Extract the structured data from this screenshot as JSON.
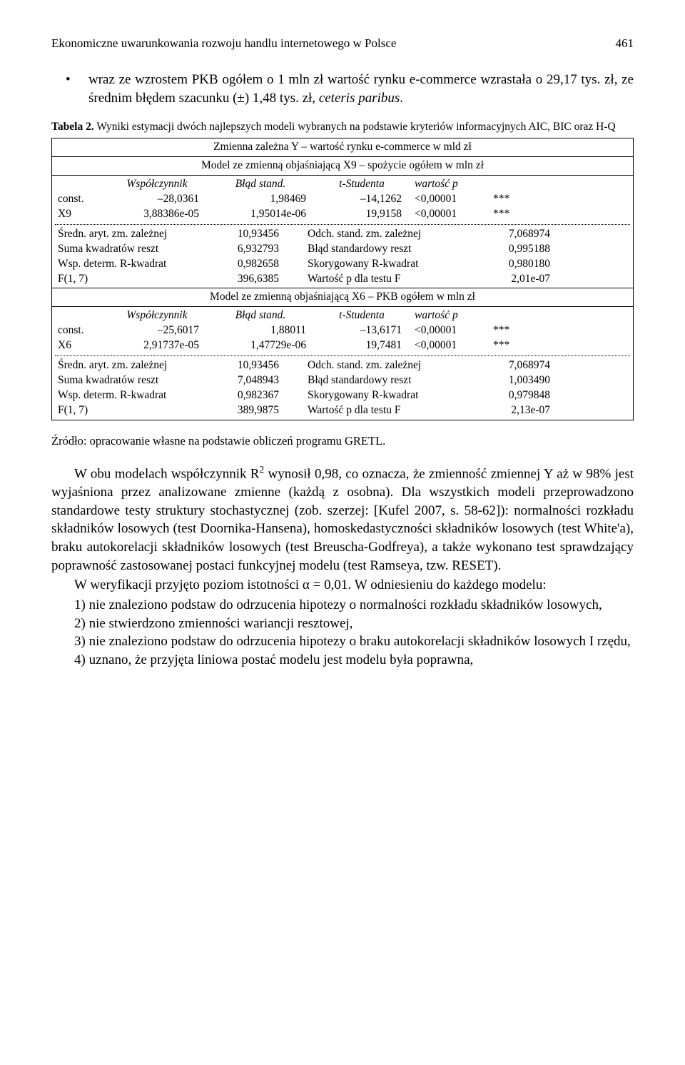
{
  "header": {
    "running_title": "Ekonomiczne uwarunkowania rozwoju handlu internetowego w Polsce",
    "page_number": "461"
  },
  "bullet": {
    "dot": "•",
    "text_a": "wraz ze wzrostem PKB ogółem o 1 mln zł wartość rynku e-commerce wzrastała o 29,17 tys. zł, ze średnim błędem szacunku (",
    "pm": "±",
    "text_b": ") 1,48 tys. zł, ",
    "text_c": "ceteris paribus",
    "text_d": "."
  },
  "table": {
    "caption_label": "Tabela 2.",
    "caption_text": " Wyniki estymacji dwóch najlepszych modeli wybranych na podstawie kryteriów informacyjnych AIC, BIC oraz H-Q",
    "y_header": "Zmienna zależna Y – wartość rynku e-commerce w mld zł",
    "model1_header": "Model ze zmienną objaśniającą X9 – spożycie ogółem w mln zł",
    "col_labels": {
      "coef": "Współczynnik",
      "se": "Błąd stand.",
      "t": "t-Studenta",
      "p": "wartość p"
    },
    "m1": {
      "rows": [
        {
          "name": "const.",
          "coef": "–28,0361",
          "se": "1,98469",
          "t": "–14,1262",
          "p": "<0,00001",
          "stars": "***"
        },
        {
          "name": "X9",
          "coef": "3,88386e-05",
          "se": "1,95014e-06",
          "t": "19,9158",
          "p": "<0,00001",
          "stars": "***"
        }
      ],
      "stats": [
        {
          "l": "Średn. aryt. zm. zależnej",
          "lv": "10,93456",
          "r": "Odch. stand. zm. zależnej",
          "rv": "7,068974"
        },
        {
          "l": "Suma kwadratów reszt",
          "lv": "6,932793",
          "r": "Błąd standardowy reszt",
          "rv": "0,995188"
        },
        {
          "l": "Wsp. determ. R-kwadrat",
          "lv": "0,982658",
          "r": "Skorygowany R-kwadrat",
          "rv": "0,980180"
        },
        {
          "l": "F(1, 7)",
          "lv": "396,6385",
          "r": "Wartość p dla testu F",
          "rv": "2,01e-07"
        }
      ]
    },
    "model2_header": "Model ze zmienną objaśniającą X6 – PKB ogółem w mln zł",
    "m2": {
      "rows": [
        {
          "name": "const.",
          "coef": "–25,6017",
          "se": "1,88011",
          "t": "–13,6171",
          "p": "<0,00001",
          "stars": "***"
        },
        {
          "name": "X6",
          "coef": "2,91737e-05",
          "se": "1,47729e-06",
          "t": "19,7481",
          "p": "<0,00001",
          "stars": "***"
        }
      ],
      "stats": [
        {
          "l": "Średn. aryt. zm. zależnej",
          "lv": "10,93456",
          "r": "Odch. stand. zm. zależnej",
          "rv": "7,068974"
        },
        {
          "l": "Suma kwadratów reszt",
          "lv": "7,048943",
          "r": "Błąd standardowy reszt",
          "rv": "1,003490"
        },
        {
          "l": "Wsp. determ. R-kwadrat",
          "lv": "0,982367",
          "r": "Skorygowany R-kwadrat",
          "rv": "0,979848"
        },
        {
          "l": "F(1, 7)",
          "lv": "389,9875",
          "r": "Wartość p dla testu F",
          "rv": "2,13e-07"
        }
      ]
    }
  },
  "source": "Źródło: opracowanie własne na podstawie obliczeń programu GRETL.",
  "body": {
    "p1a": "W obu modelach współczynnik R",
    "p1sup": "2",
    "p1b": " wynosił 0,98, co oznacza, że zmienność zmiennej Y aż w 98% jest wyjaśniona przez analizowane zmienne (każdą z osobna). Dla wszystkich modeli przeprowadzono standardowe testy struktury stochastycznej (zob. szerzej: [Kufel 2007, s. 58-62]): normalności rozkładu składników losowych (test Doornika-Hansena), homoskedastyczności składników losowych (test White'a), braku autokorelacji składników losowych (test Breuscha-Godfreya), a także wykonano test sprawdzający poprawność zastosowanej postaci funkcyjnej modelu (test Ramseya, tzw. RESET).",
    "p2": "W weryfikacji przyjęto poziom istotności α = 0,01. W odniesieniu do każdego modelu:",
    "li1": "1) nie znaleziono podstaw do odrzucenia hipotezy o normalności rozkładu składników losowych,",
    "li2": "2) nie stwierdzono zmienności wariancji resztowej,",
    "li3": "3) nie znaleziono podstaw do odrzucenia hipotezy o braku autokorelacji składników losowych I rzędu,",
    "li4": "4) uznano, że przyjęta liniowa postać modelu jest modelu była poprawna,"
  }
}
